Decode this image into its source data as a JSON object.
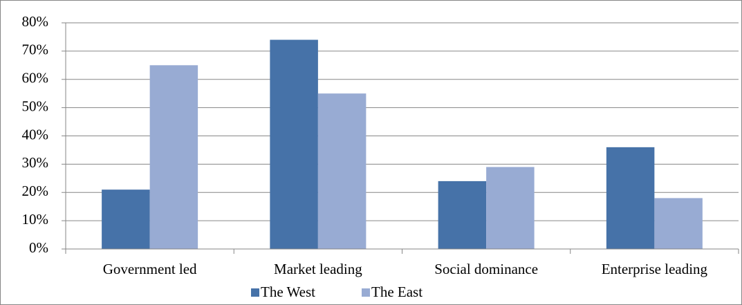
{
  "chart_data": {
    "type": "bar",
    "categories": [
      "Government led",
      "Market leading",
      "Social dominance",
      "Enterprise leading"
    ],
    "series": [
      {
        "name": "The West",
        "color": "#4672a8",
        "values": [
          21,
          74,
          24,
          36
        ]
      },
      {
        "name": "The East",
        "color": "#98abd3",
        "values": [
          65,
          55,
          29,
          18
        ]
      }
    ],
    "ylim": [
      0,
      80
    ],
    "yticks": [
      {
        "value": 0,
        "label": "0%"
      },
      {
        "value": 10,
        "label": "10%"
      },
      {
        "value": 20,
        "label": "20%"
      },
      {
        "value": 30,
        "label": "30%"
      },
      {
        "value": 40,
        "label": "40%"
      },
      {
        "value": 50,
        "label": "50%"
      },
      {
        "value": 60,
        "label": "60%"
      },
      {
        "value": 70,
        "label": "70%"
      },
      {
        "value": 80,
        "label": "80%"
      }
    ],
    "grid": true,
    "legend": "bottom"
  }
}
